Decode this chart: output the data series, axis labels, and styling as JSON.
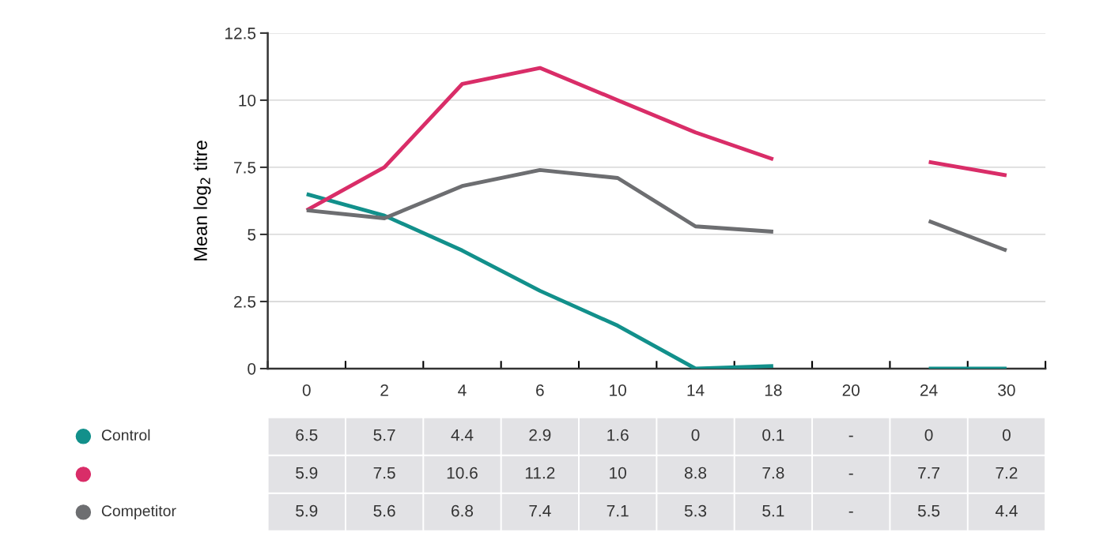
{
  "chart_data": {
    "type": "line",
    "ylabel": "Mean log$_{2}$ titre",
    "categories": [
      "0",
      "2",
      "4",
      "6",
      "10",
      "14",
      "18",
      "20",
      "24",
      "30"
    ],
    "series": [
      {
        "name": "Control",
        "color": "#12908b",
        "values": [
          6.5,
          5.7,
          4.4,
          2.9,
          1.6,
          0,
          0.1,
          null,
          0,
          0
        ],
        "value_labels": [
          "6.5",
          "5.7",
          "4.4",
          "2.9",
          "1.6",
          "0",
          "0.1",
          "-",
          "0",
          "0"
        ]
      },
      {
        "color": "#d92d68",
        "values": [
          5.9,
          7.5,
          10.6,
          11.2,
          10,
          8.8,
          7.8,
          null,
          7.7,
          7.2
        ],
        "value_labels": [
          "5.9",
          "7.5",
          "10.6",
          "11.2",
          "10",
          "8.8",
          "7.8",
          "-",
          "7.7",
          "7.2"
        ]
      },
      {
        "name": "Competitor",
        "color": "#6d6e71",
        "values": [
          5.9,
          5.6,
          6.8,
          7.4,
          7.1,
          5.3,
          5.1,
          null,
          5.5,
          4.4
        ],
        "value_labels": [
          "5.9",
          "5.6",
          "6.8",
          "7.4",
          "7.1",
          "5.3",
          "5.1",
          "-",
          "5.5",
          "4.4"
        ]
      }
    ],
    "ylim": [
      0,
      12.5
    ],
    "yticks": [
      0,
      2.5,
      5,
      7.5,
      10,
      12.5
    ],
    "grid": "y",
    "legend": "bottom left",
    "marker": "none",
    "line_style": "solid"
  }
}
